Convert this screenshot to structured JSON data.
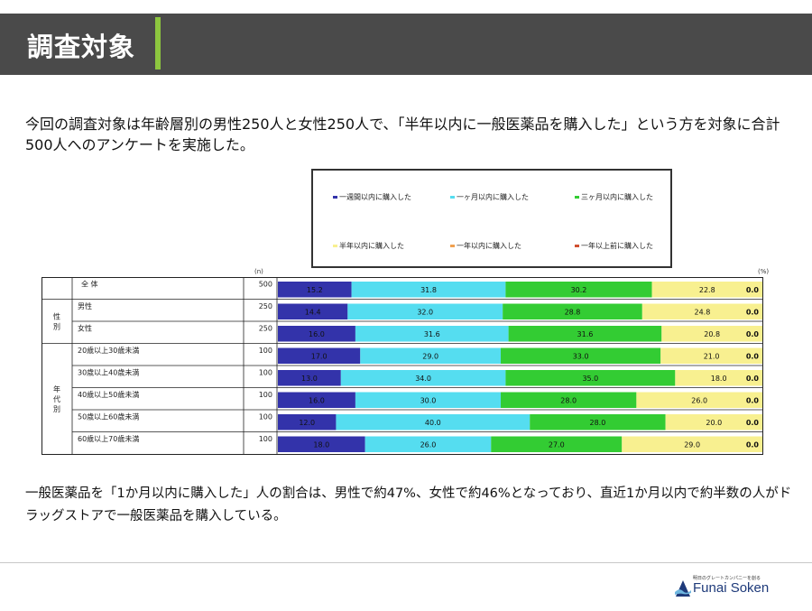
{
  "header": {
    "title": "調査対象"
  },
  "intro_text": "今回の調査対象は年齢層別の男性250人と女性250人で、「半年以内に一般医薬品を購入した」という方を対象に合計500人へのアンケートを実施した。",
  "caption_text": "一般医薬品を「1か月以内に購入した」人の割合は、男性で約47%、女性で約46%となっており、直近1か月以内で約半数の人がドラッグストアで一般医薬品を購入している。",
  "colors": {
    "header_bg": "#4a4a4a",
    "accent": "#8dc63f",
    "brand": "#1e3a7a"
  },
  "chart_data": {
    "type": "bar",
    "orientation": "horizontal-stacked-100",
    "unit_n": "(n)",
    "unit_pct": "(%)",
    "group_labels": {
      "gender": "性別",
      "age": "年代別"
    },
    "legend": [
      {
        "name": "一週間以内に購入した",
        "color": "#3333aa"
      },
      {
        "name": "一ヶ月以内に購入した",
        "color": "#55ddf0"
      },
      {
        "name": "三ヶ月以内に購入した",
        "color": "#33cc33"
      },
      {
        "name": "半年以内に購入した",
        "color": "#f8f090"
      },
      {
        "name": "一年以内に購入した",
        "color": "#f0a050"
      },
      {
        "name": "一年以上前に購入した",
        "color": "#d05030"
      }
    ],
    "categories": [
      "全 体",
      "男性",
      "女性",
      "20歳以上30歳未満",
      "30歳以上40歳未満",
      "40歳以上50歳未満",
      "50歳以上60歳未満",
      "60歳以上70歳未満"
    ],
    "n": [
      500,
      250,
      250,
      100,
      100,
      100,
      100,
      100
    ],
    "series": [
      {
        "name": "一週間以内に購入した",
        "values": [
          15.2,
          14.4,
          16.0,
          17.0,
          13.0,
          16.0,
          12.0,
          18.0
        ]
      },
      {
        "name": "一ヶ月以内に購入した",
        "values": [
          31.8,
          32.0,
          31.6,
          29.0,
          34.0,
          30.0,
          40.0,
          26.0
        ]
      },
      {
        "name": "三ヶ月以内に購入した",
        "values": [
          30.2,
          28.8,
          31.6,
          33.0,
          35.0,
          28.0,
          28.0,
          27.0
        ]
      },
      {
        "name": "半年以内に購入した",
        "values": [
          22.8,
          24.8,
          20.8,
          21.0,
          18.0,
          26.0,
          20.0,
          29.0
        ]
      },
      {
        "name": "一年以内に購入した",
        "values": [
          0.0,
          0.0,
          0.0,
          0.0,
          0.0,
          0.0,
          0.0,
          0.0
        ]
      },
      {
        "name": "一年以上前に購入した",
        "values": [
          0.0,
          0.0,
          0.0,
          0.0,
          0.0,
          0.0,
          0.0,
          0.0
        ]
      }
    ],
    "value_labels": [
      [
        "15.2",
        "31.8",
        "30.2",
        "22.8",
        "0.0"
      ],
      [
        "14.4",
        "32.0",
        "28.8",
        "24.8",
        "0.0"
      ],
      [
        "16.0",
        "31.6",
        "31.6",
        "20.8",
        "0.0"
      ],
      [
        "17.0",
        "29.0",
        "33.0",
        "21.0",
        "0.0"
      ],
      [
        "13.0",
        "34.0",
        "35.0",
        "18.0",
        "0.0"
      ],
      [
        "16.0",
        "30.0",
        "28.0",
        "26.0",
        "0.0"
      ],
      [
        "12.0",
        "40.0",
        "28.0",
        "20.0",
        "0.0"
      ],
      [
        "18.0",
        "26.0",
        "27.0",
        "29.0",
        "0.0"
      ]
    ],
    "xlim": [
      0,
      100
    ],
    "legend_position": "top"
  },
  "footer": {
    "logo_tagline": "明日のグレートカンパニーを創る",
    "logo_text": "Funai Soken"
  }
}
